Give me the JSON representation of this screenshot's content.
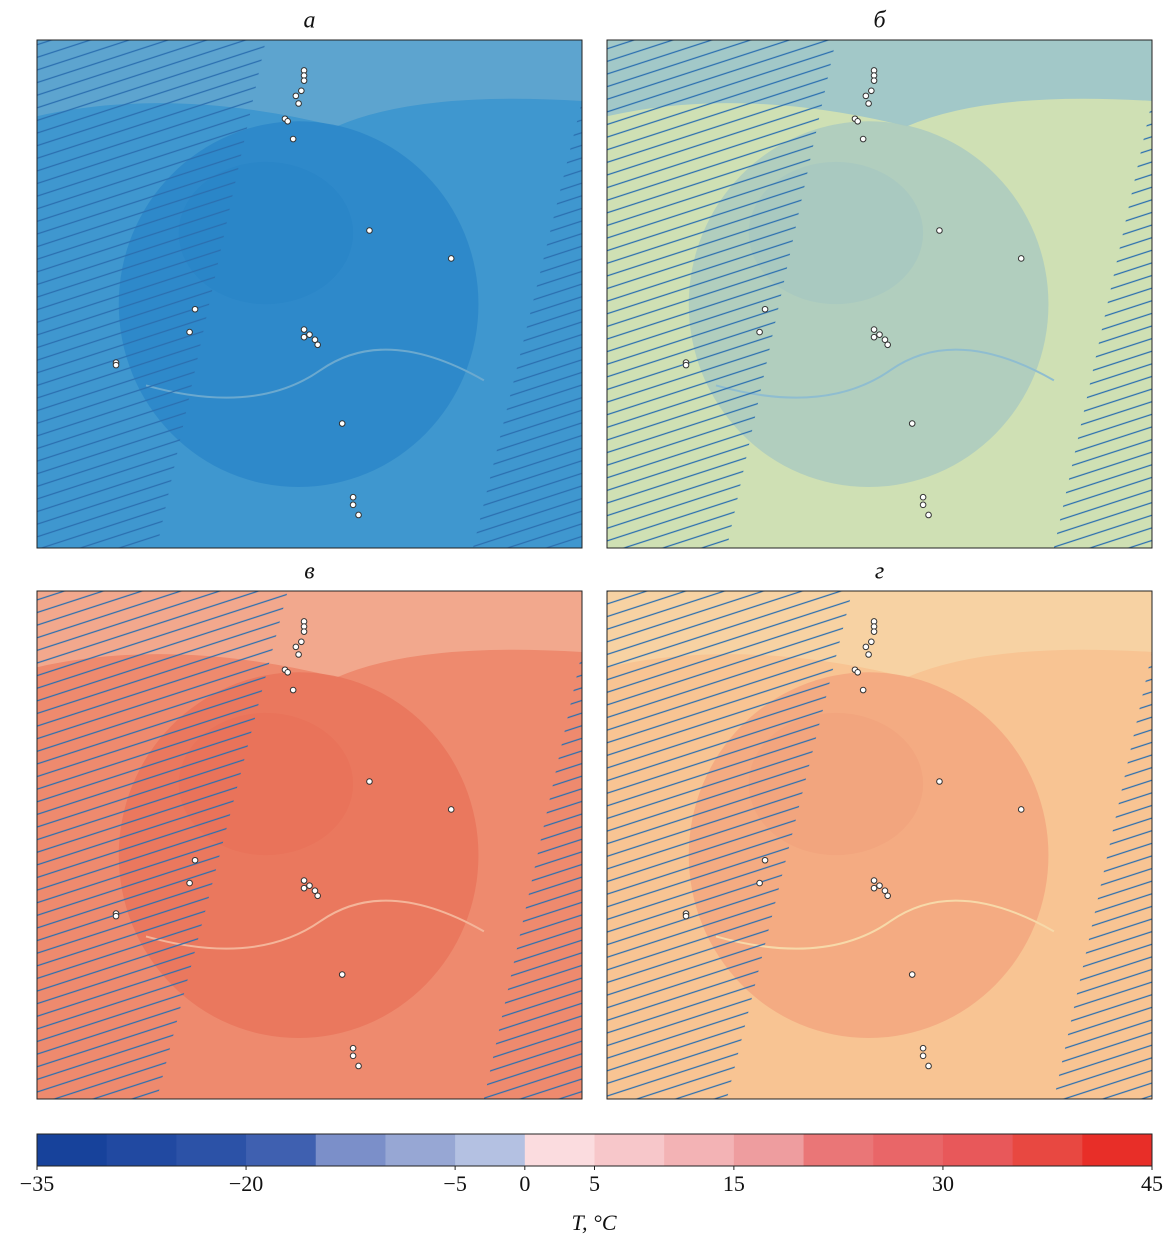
{
  "panels": [
    {
      "label": "а"
    },
    {
      "label": "б"
    },
    {
      "label": "в"
    },
    {
      "label": "г"
    }
  ],
  "colorbar": {
    "lim": [
      -35,
      45
    ],
    "ticks": [
      {
        "value": -35,
        "label": "−35"
      },
      {
        "value": -20,
        "label": "−20"
      },
      {
        "value": -5,
        "label": "−5"
      },
      0,
      5,
      15,
      30,
      45
    ],
    "colors": [
      "#17429b",
      "#2149a1",
      "#2c52a7",
      "#3f60b0",
      "#7b8fc9",
      "#97a7d4",
      "#b4c1e2",
      "#fbdcdf",
      "#f7c7ca",
      "#f3b3b5",
      "#ee9d9f",
      "#ea7677",
      "#e96668",
      "#e8585a",
      "#e84841",
      "#e82e28"
    ],
    "label": "T, °C"
  }
}
